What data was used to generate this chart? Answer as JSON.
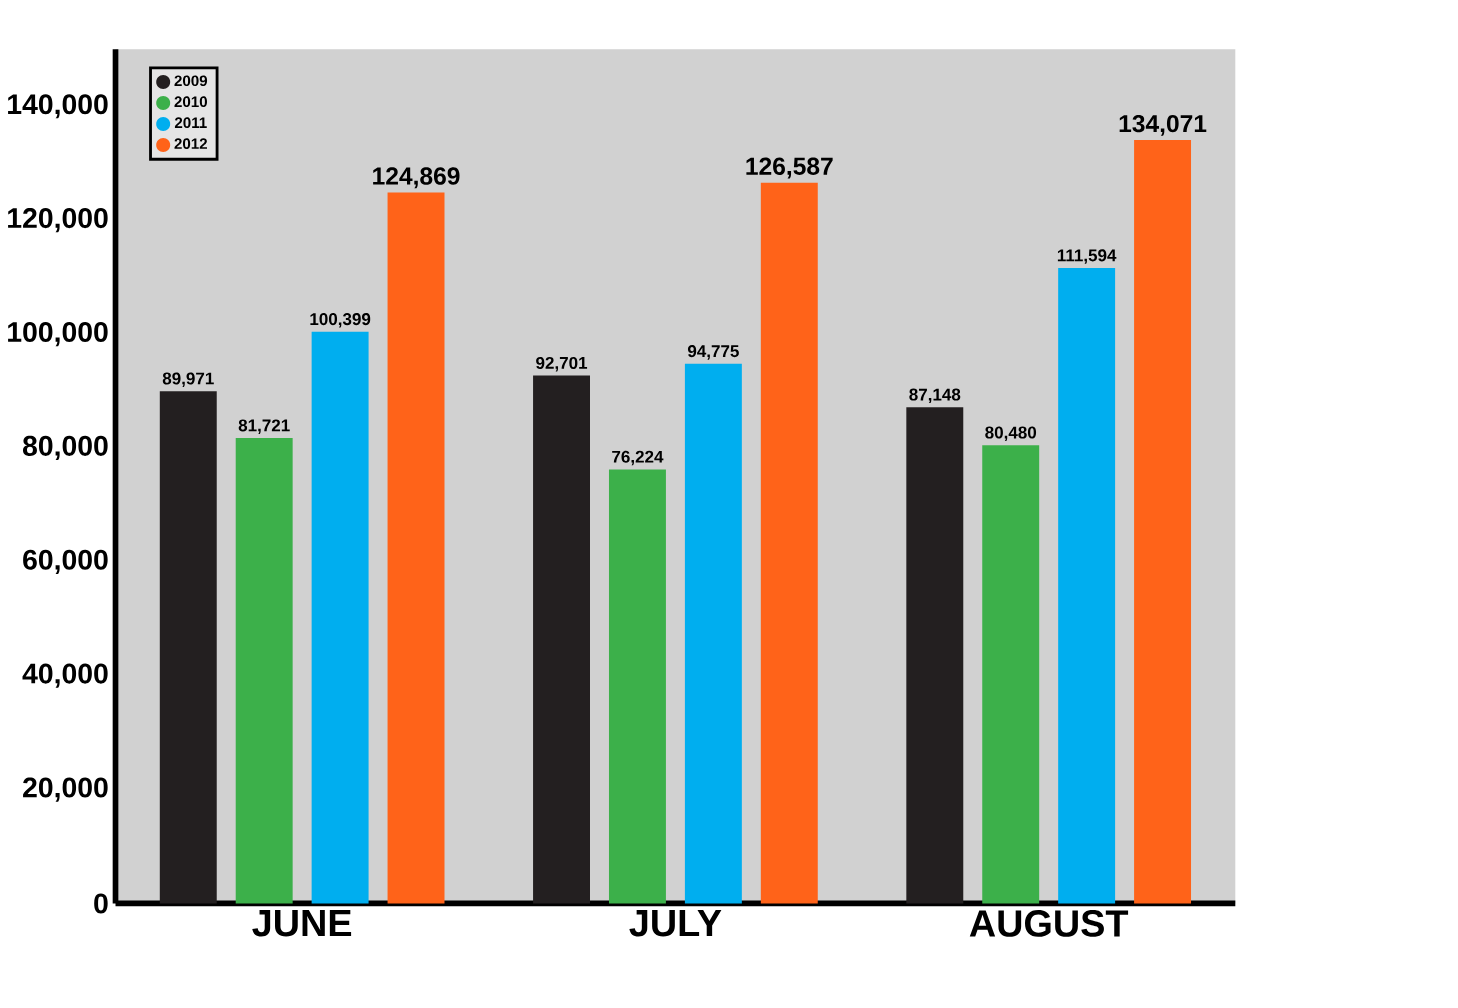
{
  "chart_data": {
    "type": "bar",
    "categories": [
      "JUNE",
      "JULY",
      "AUGUST"
    ],
    "series": [
      {
        "name": "2009",
        "color": "#231f20",
        "values": [
          89971,
          92701,
          87148
        ],
        "value_labels": [
          "89,971",
          "92,701",
          "87,148"
        ]
      },
      {
        "name": "2010",
        "color": "#3cb04a",
        "values": [
          81721,
          76224,
          80480
        ],
        "value_labels": [
          "81,721",
          "76,224",
          "80,480"
        ]
      },
      {
        "name": "2011",
        "color": "#00aeef",
        "values": [
          100399,
          94775,
          111594
        ],
        "value_labels": [
          "100,399",
          "94,775",
          "111,594"
        ]
      },
      {
        "name": "2012",
        "color": "#ff6319",
        "values": [
          124869,
          126587,
          134071
        ],
        "value_labels": [
          "124,869",
          "126,587",
          "134,071"
        ]
      }
    ],
    "ylim": [
      0,
      150000
    ],
    "yticks": [
      {
        "value": 0,
        "label": "0"
      },
      {
        "value": 20000,
        "label": "20,000"
      },
      {
        "value": 40000,
        "label": "40,000"
      },
      {
        "value": 60000,
        "label": "60,000"
      },
      {
        "value": 80000,
        "label": "80,000"
      },
      {
        "value": 100000,
        "label": "100,000"
      },
      {
        "value": 120000,
        "label": "120,000"
      },
      {
        "value": 140000,
        "label": "140,000"
      }
    ],
    "legend": "top left"
  }
}
